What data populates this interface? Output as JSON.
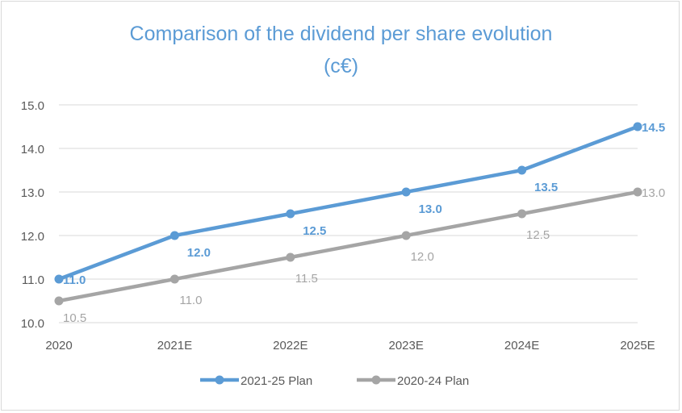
{
  "chart_data": {
    "type": "line",
    "title": "Comparison of the dividend per share evolution",
    "subtitle": "(c€)",
    "xlabel": "",
    "ylabel": "",
    "categories": [
      "2020",
      "2021E",
      "2022E",
      "2023E",
      "2024E",
      "2025E"
    ],
    "ylim": [
      10.0,
      15.0
    ],
    "yticks": [
      "10.0",
      "11.0",
      "12.0",
      "13.0",
      "14.0",
      "15.0"
    ],
    "grid": true,
    "legend": "bottom",
    "series": [
      {
        "name": "2021-25 Plan",
        "color": "#5b9bd5",
        "values": [
          11.0,
          12.0,
          12.5,
          13.0,
          13.5,
          14.5
        ],
        "labels": [
          "11.0",
          "12.0",
          "12.5",
          "13.0",
          "13.5",
          "14.5"
        ]
      },
      {
        "name": "2020-24 Plan",
        "color": "#a5a5a5",
        "values": [
          10.5,
          11.0,
          11.5,
          12.0,
          12.5,
          13.0
        ],
        "labels": [
          "10.5",
          "11.0",
          "11.5",
          "12.0",
          "12.5",
          "13.0"
        ]
      }
    ]
  }
}
